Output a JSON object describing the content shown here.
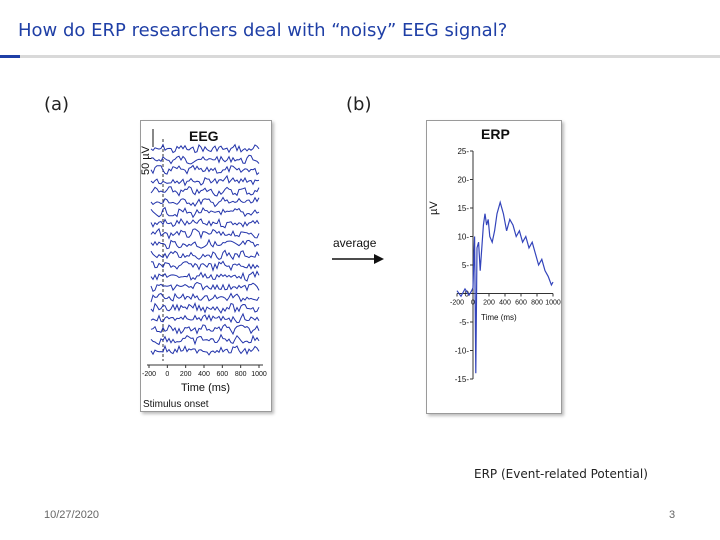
{
  "slide": {
    "title": "How do ERP researchers deal with “noisy” EEG signal?",
    "label_a": "(a)",
    "label_b": "(b)",
    "caption": "ERP (Event-related Potential)",
    "date": "10/27/2020",
    "page_number": "3",
    "arrow_label": "average"
  },
  "eeg_panel": {
    "title": "EEG",
    "scale_label": "50 µV",
    "x_ticks": [
      "-200",
      "0",
      "200",
      "400",
      "600",
      "800",
      "1000"
    ],
    "x_label": "Time (ms)",
    "onset_label": "Stimulus onset",
    "trace_color": "#2233aa"
  },
  "erp_panel": {
    "title": "ERP",
    "y_axis_label": "µV",
    "x_ticks": [
      "-200",
      "0",
      "200",
      "400",
      "600",
      "800",
      "1000"
    ],
    "x_label": "Time (ms)",
    "line_color": "#3344bb"
  },
  "chart_data": {
    "type": "line",
    "title": "ERP",
    "xlabel": "Time (ms)",
    "ylabel": "µV",
    "xlim": [
      -200,
      1000
    ],
    "ylim": [
      -15,
      25
    ],
    "y_ticks": [
      25,
      20,
      15,
      10,
      5,
      0,
      -5,
      -10,
      -15
    ],
    "series": [
      {
        "x": [
          -200,
          -150,
          -100,
          -50,
          -20,
          0,
          10,
          20,
          35,
          50,
          70,
          90,
          110,
          130,
          150,
          170,
          190,
          210,
          240,
          270,
          300,
          340,
          380,
          420,
          460,
          500,
          540,
          580,
          620,
          660,
          700,
          740,
          780,
          820,
          860,
          900,
          940,
          980,
          1000
        ],
        "values": [
          0.5,
          -0.5,
          0.8,
          -0.3,
          0.4,
          1,
          6,
          10,
          -14,
          8,
          9,
          4,
          8,
          12,
          14,
          12,
          13,
          10,
          9,
          11,
          14,
          16,
          14,
          11,
          13,
          12,
          10,
          11,
          9,
          10,
          8,
          9,
          7,
          5,
          6,
          4,
          3,
          1.5,
          2
        ]
      }
    ]
  }
}
